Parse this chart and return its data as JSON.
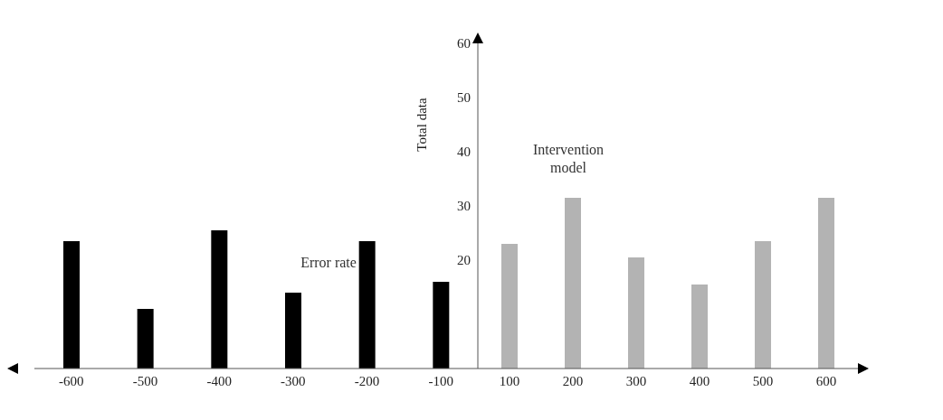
{
  "chart_data": {
    "type": "bar",
    "ylabel": "Total data",
    "categories": [
      "-600",
      "-500",
      "-400",
      "-300",
      "-200",
      "-100",
      "100",
      "200",
      "300",
      "400",
      "500",
      "600"
    ],
    "series": [
      {
        "name": "Error rate",
        "color": "#000000",
        "values": [
          23.5,
          11,
          25.5,
          14,
          23.5,
          16,
          null,
          null,
          null,
          null,
          null,
          null
        ]
      },
      {
        "name": "Intervention model",
        "color": "#b3b3b3",
        "values": [
          null,
          null,
          null,
          null,
          null,
          null,
          23,
          31.5,
          20.5,
          15.5,
          23.5,
          31.5
        ]
      }
    ],
    "ylim": [
      0,
      60
    ],
    "yticks": [
      20,
      30,
      40,
      50,
      60
    ]
  }
}
